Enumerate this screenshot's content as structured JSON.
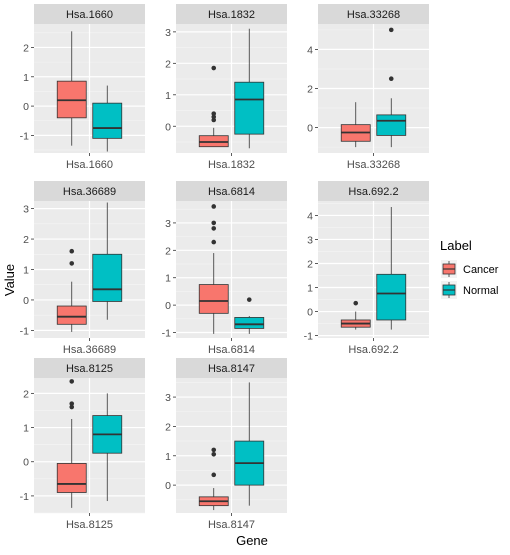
{
  "chart_data": {
    "type": "boxplot",
    "xlabel": "Gene",
    "ylabel": "Value",
    "legend": {
      "title": "Label",
      "placement": "right",
      "entries": [
        {
          "name": "Cancer",
          "color": "#F8766D"
        },
        {
          "name": "Normal",
          "color": "#00BFC4"
        }
      ]
    },
    "panel_background": "#EBEBEB",
    "grid": true,
    "facets": [
      {
        "title": "Hsa.1660",
        "tick_label": "Hsa.1660",
        "ylim": [
          -1.6,
          2.8
        ],
        "yticks": [
          -1,
          0,
          1,
          2
        ],
        "boxes": {
          "Cancer": {
            "min": -1.35,
            "q1": -0.4,
            "median": 0.2,
            "q3": 0.85,
            "max": 2.55,
            "outliers": []
          },
          "Normal": {
            "min": -1.55,
            "q1": -1.1,
            "median": -0.75,
            "q3": 0.1,
            "max": 0.7,
            "outliers": []
          }
        }
      },
      {
        "title": "Hsa.1832",
        "tick_label": "Hsa.1832",
        "ylim": [
          -0.85,
          3.25
        ],
        "yticks": [
          0,
          1,
          2,
          3
        ],
        "boxes": {
          "Cancer": {
            "min": -0.65,
            "q1": -0.65,
            "median": -0.5,
            "q3": -0.3,
            "max": -0.05,
            "outliers": [
              1.85,
              0.4,
              0.3,
              0.2
            ]
          },
          "Normal": {
            "min": -0.7,
            "q1": -0.25,
            "median": 0.85,
            "q3": 1.4,
            "max": 3.1,
            "outliers": []
          }
        }
      },
      {
        "title": "Hsa.33268",
        "tick_label": "Hsa.33268",
        "ylim": [
          -1.3,
          5.3
        ],
        "yticks": [
          0,
          2,
          4
        ],
        "boxes": {
          "Cancer": {
            "min": -1.0,
            "q1": -0.7,
            "median": -0.25,
            "q3": 0.15,
            "max": 1.3,
            "outliers": []
          },
          "Normal": {
            "min": -1.0,
            "q1": -0.4,
            "median": 0.35,
            "q3": 0.65,
            "max": 1.5,
            "outliers": [
              5.0,
              2.5
            ]
          }
        }
      },
      {
        "title": "Hsa.36689",
        "tick_label": "Hsa.36689",
        "ylim": [
          -1.25,
          3.25
        ],
        "yticks": [
          -1,
          0,
          1,
          2,
          3
        ],
        "boxes": {
          "Cancer": {
            "min": -1.05,
            "q1": -0.8,
            "median": -0.55,
            "q3": -0.2,
            "max": 0.6,
            "outliers": [
              1.6,
              1.2
            ]
          },
          "Normal": {
            "min": -0.65,
            "q1": -0.05,
            "median": 0.35,
            "q3": 1.5,
            "max": 3.2,
            "outliers": []
          }
        }
      },
      {
        "title": "Hsa.6814",
        "tick_label": "Hsa.6814",
        "ylim": [
          -1.2,
          3.8
        ],
        "yticks": [
          -1,
          0,
          1,
          2,
          3
        ],
        "boxes": {
          "Cancer": {
            "min": -1.05,
            "q1": -0.3,
            "median": 0.15,
            "q3": 0.75,
            "max": 1.9,
            "outliers": [
              3.6,
              3.0,
              2.8,
              2.3
            ]
          },
          "Normal": {
            "min": -1.05,
            "q1": -0.85,
            "median": -0.7,
            "q3": -0.45,
            "max": -0.4,
            "outliers": [
              0.2
            ]
          }
        }
      },
      {
        "title": "Hsa.692.2",
        "tick_label": "Hsa.692.2",
        "ylim": [
          -1.1,
          4.6
        ],
        "yticks": [
          -1,
          0,
          1,
          2,
          3,
          4
        ],
        "boxes": {
          "Cancer": {
            "min": -0.75,
            "q1": -0.65,
            "median": -0.5,
            "q3": -0.35,
            "max": 0.0,
            "outliers": [
              0.35
            ]
          },
          "Normal": {
            "min": -0.75,
            "q1": -0.35,
            "median": 0.75,
            "q3": 1.55,
            "max": 4.35,
            "outliers": []
          }
        }
      },
      {
        "title": "Hsa.8125",
        "tick_label": "Hsa.8125",
        "ylim": [
          -1.5,
          2.45
        ],
        "yticks": [
          -1,
          0,
          1,
          2
        ],
        "boxes": {
          "Cancer": {
            "min": -1.35,
            "q1": -0.9,
            "median": -0.65,
            "q3": -0.05,
            "max": 1.25,
            "outliers": [
              2.35,
              1.7,
              1.6
            ]
          },
          "Normal": {
            "min": -1.15,
            "q1": 0.25,
            "median": 0.8,
            "q3": 1.35,
            "max": 2.0,
            "outliers": []
          }
        }
      },
      {
        "title": "Hsa.8147",
        "tick_label": "Hsa.8147",
        "ylim": [
          -0.95,
          3.65
        ],
        "yticks": [
          0,
          1,
          2,
          3
        ],
        "boxes": {
          "Cancer": {
            "min": -0.85,
            "q1": -0.7,
            "median": -0.55,
            "q3": -0.4,
            "max": -0.1,
            "outliers": [
              1.2,
              1.05,
              0.35
            ]
          },
          "Normal": {
            "min": -0.7,
            "q1": 0.0,
            "median": 0.75,
            "q3": 1.5,
            "max": 3.5,
            "outliers": []
          }
        }
      }
    ]
  }
}
